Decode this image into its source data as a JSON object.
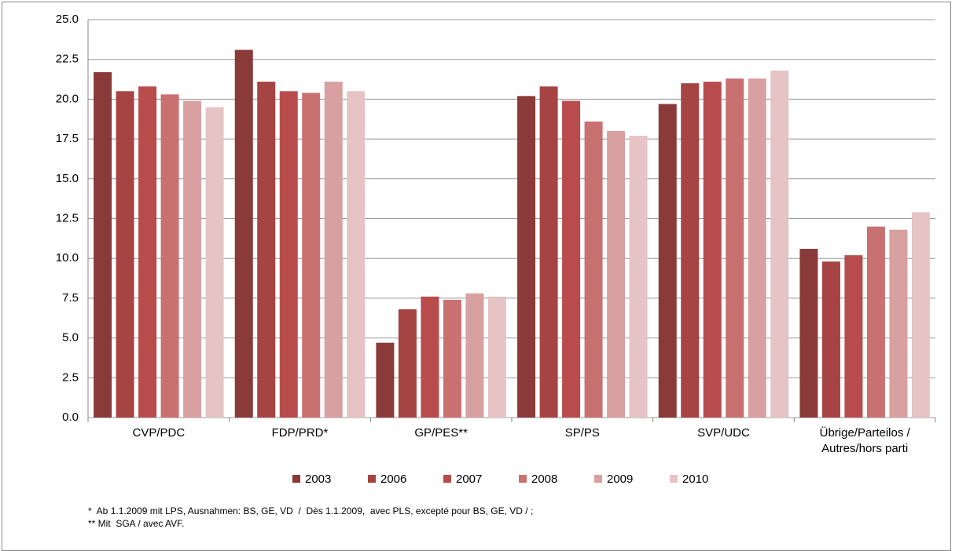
{
  "chart_data": {
    "type": "bar",
    "categories": [
      "CVP/PDC",
      "FDP/PRD*",
      "GP/PES**",
      "SP/PS",
      "SVP/UDC",
      "Übrige/Parteilos / Autres/hors parti"
    ],
    "series": [
      {
        "name": "2003",
        "color": "#8b3a3a",
        "values": [
          21.7,
          23.1,
          4.7,
          20.2,
          19.7,
          10.6
        ]
      },
      {
        "name": "2006",
        "color": "#a64343",
        "values": [
          20.5,
          21.1,
          6.8,
          20.8,
          21.0,
          9.8
        ]
      },
      {
        "name": "2007",
        "color": "#b84c4c",
        "values": [
          20.8,
          20.5,
          7.6,
          19.9,
          21.1,
          10.2
        ]
      },
      {
        "name": "2008",
        "color": "#c97171",
        "values": [
          20.3,
          20.4,
          7.4,
          18.6,
          21.3,
          12.0
        ]
      },
      {
        "name": "2009",
        "color": "#d8a0a0",
        "values": [
          19.9,
          21.1,
          7.8,
          18.0,
          21.3,
          11.8
        ]
      },
      {
        "name": "2010",
        "color": "#e6c3c4",
        "values": [
          19.5,
          20.5,
          7.6,
          17.7,
          21.8,
          12.9
        ]
      }
    ],
    "ylim": [
      0,
      25
    ],
    "yticks": [
      {
        "value": 0,
        "label": "0.0"
      },
      2.5,
      {
        "value": 5,
        "label": "5.0"
      },
      7.5,
      {
        "value": 10,
        "label": "10.0"
      },
      12.5,
      {
        "value": 15,
        "label": "15.0"
      },
      17.5,
      {
        "value": 20,
        "label": "20.0"
      },
      22.5,
      {
        "value": 25,
        "label": "25.0"
      }
    ],
    "grid": true,
    "legend": "bottom",
    "notes": [
      "*  Ab 1.1.2009 mit LPS, Ausnahmen: BS, GE, VD  /  Dès 1.1.2009,  avec PLS, excepté pour BS, GE, VD / ;",
      "** Mit  SGA / avec AVF."
    ]
  }
}
